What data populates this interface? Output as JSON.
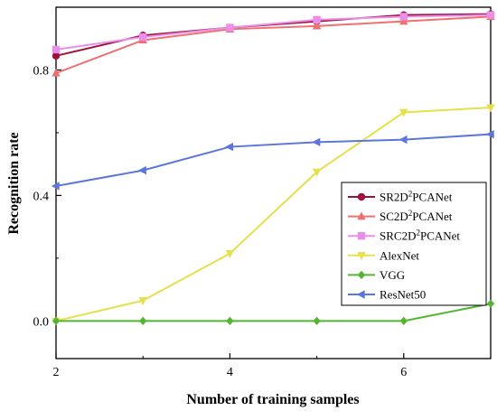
{
  "chart_data": {
    "type": "line",
    "xlabel": "Number of training samples",
    "ylabel": "Recognition rate",
    "xlim": [
      2,
      7
    ],
    "ylim": [
      -0.12,
      1.0
    ],
    "xticks": [
      2,
      4,
      6
    ],
    "yticks": [
      0.0,
      0.4,
      0.8
    ],
    "xtick_labels": [
      "2",
      "4",
      "6"
    ],
    "ytick_labels": [
      "0.0",
      "0.4",
      "0.8"
    ],
    "grid": false,
    "legend_position": "lower-right",
    "x": [
      2,
      3,
      4,
      5,
      6,
      7
    ],
    "series": [
      {
        "name": "SR2D²PCANet",
        "legend_base": "SR2D",
        "legend_sup": "2",
        "legend_rest": "PCANet",
        "color": "#a0103c",
        "marker": "circle",
        "values": [
          0.845,
          0.91,
          0.935,
          0.955,
          0.975,
          0.978
        ]
      },
      {
        "name": "SC2D²PCANet",
        "legend_base": "SC2D",
        "legend_sup": "2",
        "legend_rest": "PCANet",
        "color": "#f07070",
        "marker": "triangle-up",
        "values": [
          0.79,
          0.895,
          0.93,
          0.94,
          0.955,
          0.97
        ]
      },
      {
        "name": "SRC2D²PCANet",
        "legend_base": "SRC2D",
        "legend_sup": "2",
        "legend_rest": "PCANet",
        "color": "#e98ee9",
        "marker": "square",
        "values": [
          0.865,
          0.905,
          0.935,
          0.96,
          0.97,
          0.975
        ]
      },
      {
        "name": "AlexNet",
        "legend_base": "AlexNet",
        "legend_sup": "",
        "legend_rest": "",
        "color": "#e6e04a",
        "marker": "triangle-down",
        "values": [
          0.0,
          0.065,
          0.215,
          0.475,
          0.665,
          0.68
        ]
      },
      {
        "name": "VGG",
        "legend_base": "VGG",
        "legend_sup": "",
        "legend_rest": "",
        "color": "#55b531",
        "marker": "diamond",
        "values": [
          0.0,
          0.0,
          0.0,
          0.0,
          0.0,
          0.055
        ]
      },
      {
        "name": "ResNet50",
        "legend_base": "ResNet50",
        "legend_sup": "",
        "legend_rest": "",
        "color": "#5b76dd",
        "marker": "triangle-left",
        "values": [
          0.43,
          0.48,
          0.555,
          0.57,
          0.578,
          0.595
        ]
      }
    ]
  }
}
